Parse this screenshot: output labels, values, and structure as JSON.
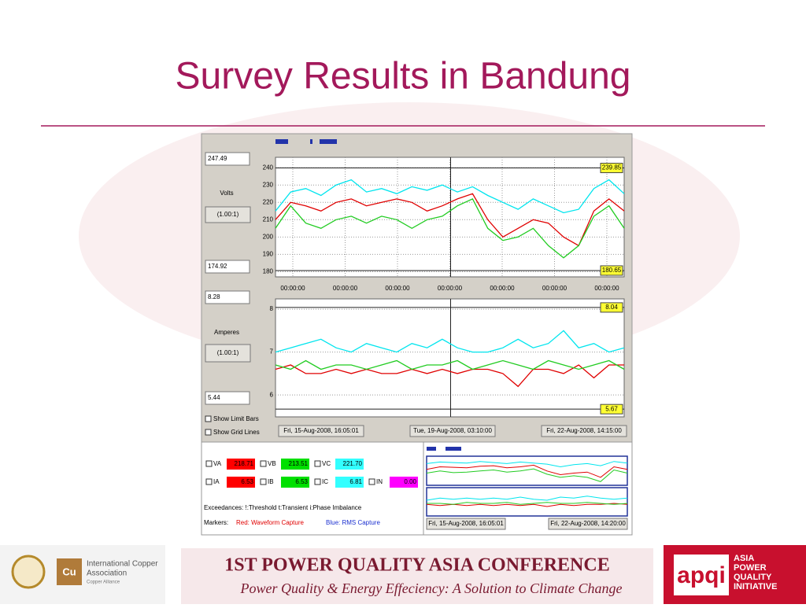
{
  "title": "Survey Results in Bandung",
  "app": {
    "left": {
      "volts_max": "247.49",
      "volts_label": "Volts",
      "volts_ratio": "(1.00:1)",
      "volts_min": "174.92",
      "amps_max": "8.28",
      "amps_label": "Amperes",
      "amps_ratio": "(1.00:1)",
      "amps_min": "5.44",
      "show_limit_bars": "Show Limit Bars",
      "show_grid_lines": "Show Grid Lines"
    },
    "volts_chart": {
      "ylim": [
        177,
        246
      ],
      "yticks": [
        180,
        190,
        200,
        210,
        220,
        230,
        240
      ],
      "time_labels": [
        "00:00:00",
        "00:00:00",
        "00:00:00",
        "00:00:00",
        "00:00:00",
        "00:00:00",
        "00:00:00"
      ],
      "limits": [
        239.85,
        180.65
      ],
      "series": [
        {
          "color": "#00e5ee",
          "values": [
            215,
            226,
            228,
            224,
            230,
            233,
            226,
            228,
            225,
            229,
            227,
            230,
            226,
            229,
            224,
            220,
            216,
            222,
            218,
            214,
            216,
            228,
            233,
            225
          ]
        },
        {
          "color": "#e00000",
          "values": [
            210,
            220,
            218,
            215,
            220,
            222,
            218,
            220,
            222,
            220,
            215,
            218,
            222,
            225,
            210,
            200,
            205,
            210,
            208,
            200,
            195,
            215,
            222,
            215
          ]
        },
        {
          "color": "#22cc22",
          "values": [
            205,
            218,
            208,
            205,
            210,
            212,
            208,
            212,
            210,
            205,
            210,
            212,
            218,
            222,
            205,
            198,
            200,
            205,
            195,
            188,
            195,
            212,
            218,
            205
          ]
        }
      ]
    },
    "amps_chart": {
      "ylim": [
        5.49,
        8.24
      ],
      "yticks": [
        6,
        7,
        8
      ],
      "limits": [
        8.04,
        5.67
      ],
      "series": [
        {
          "color": "#00e5ee",
          "values": [
            7.0,
            7.1,
            7.2,
            7.3,
            7.1,
            7.0,
            7.2,
            7.1,
            7.0,
            7.2,
            7.1,
            7.3,
            7.1,
            7.0,
            7.0,
            7.1,
            7.3,
            7.1,
            7.2,
            7.5,
            7.1,
            7.2,
            7.0,
            7.1
          ]
        },
        {
          "color": "#e00000",
          "values": [
            6.6,
            6.7,
            6.5,
            6.5,
            6.6,
            6.5,
            6.6,
            6.5,
            6.5,
            6.6,
            6.5,
            6.6,
            6.5,
            6.6,
            6.6,
            6.5,
            6.2,
            6.6,
            6.6,
            6.5,
            6.7,
            6.4,
            6.7,
            6.7
          ]
        },
        {
          "color": "#22cc22",
          "values": [
            6.7,
            6.6,
            6.8,
            6.6,
            6.7,
            6.7,
            6.6,
            6.7,
            6.8,
            6.6,
            6.7,
            6.7,
            6.8,
            6.6,
            6.7,
            6.8,
            6.7,
            6.6,
            6.8,
            6.7,
            6.6,
            6.7,
            6.8,
            6.6
          ]
        }
      ]
    },
    "nav": [
      "Fri, 15-Aug-2008, 16:05:01",
      "Tue, 19-Aug-2008, 03:10:00",
      "Fri, 22-Aug-2008, 14:15:00"
    ],
    "readings": [
      {
        "name": "VA",
        "value": "218.71",
        "color": "#ff0000"
      },
      {
        "name": "VB",
        "value": "213.51",
        "color": "#00e000"
      },
      {
        "name": "VC",
        "value": "221.70",
        "color": "#33ffff"
      },
      {
        "name": "IA",
        "value": "6.53",
        "color": "#ff0000"
      },
      {
        "name": "IB",
        "value": "6.53",
        "color": "#00e000"
      },
      {
        "name": "IC",
        "value": "6.81",
        "color": "#33ffff"
      },
      {
        "name": "IN",
        "value": "0.00",
        "color": "#ff00ff"
      }
    ],
    "exceedances": "Exceedances:  !:Threshold  t:Transient  i:Phase Imbalance",
    "markers": {
      "label": "Markers:",
      "red": "Red: Waveform Capture",
      "blue": "Blue: RMS Capture"
    },
    "mini_volts": {
      "ylim": [
        185,
        240
      ],
      "series": [
        {
          "color": "#00e5ee",
          "values": [
            226,
            229,
            228,
            227,
            230,
            228,
            226,
            229,
            227,
            225,
            220,
            224,
            226,
            222,
            230,
            227
          ]
        },
        {
          "color": "#e00000",
          "values": [
            215,
            220,
            219,
            218,
            221,
            222,
            218,
            220,
            223,
            212,
            205,
            208,
            210,
            200,
            220,
            215
          ]
        },
        {
          "color": "#22cc22",
          "values": [
            208,
            212,
            209,
            210,
            212,
            214,
            210,
            212,
            216,
            206,
            200,
            203,
            200,
            192,
            214,
            208
          ]
        }
      ]
    },
    "mini_amps": {
      "ylim": [
        5.5,
        8.2
      ],
      "series": [
        {
          "color": "#00e5ee",
          "values": [
            7.0,
            7.2,
            7.1,
            7.2,
            7.1,
            7.2,
            7.1,
            7.3,
            7.1,
            7.0,
            7.3,
            7.2,
            7.4,
            7.2,
            7.1,
            7.2
          ]
        },
        {
          "color": "#e00000",
          "values": [
            6.6,
            6.5,
            6.6,
            6.5,
            6.6,
            6.5,
            6.6,
            6.5,
            6.6,
            6.4,
            6.6,
            6.5,
            6.6,
            6.6,
            6.7,
            6.6
          ]
        },
        {
          "color": "#22cc22",
          "values": [
            6.7,
            6.7,
            6.6,
            6.8,
            6.7,
            6.7,
            6.8,
            6.6,
            6.7,
            6.8,
            6.7,
            6.7,
            6.8,
            6.7,
            6.6,
            6.7
          ]
        }
      ]
    },
    "mini_nav": [
      "Fri, 15-Aug-2008, 16:05:01",
      "Fri, 22-Aug-2008, 14:20:00"
    ]
  },
  "footer": {
    "ica_line1": "International Copper",
    "ica_line2": "Association",
    "ica_line3": "Copper Alliance",
    "cu": "Cu",
    "conference": "1ST POWER QUALITY ASIA CONFERENCE",
    "tagline": "Power Quality & Energy Effeciency: A Solution to Climate Change",
    "apqi": "apqi",
    "apqi_lines": [
      "ASIA",
      "POWER",
      "QUALITY",
      "INITIATIVE"
    ]
  }
}
